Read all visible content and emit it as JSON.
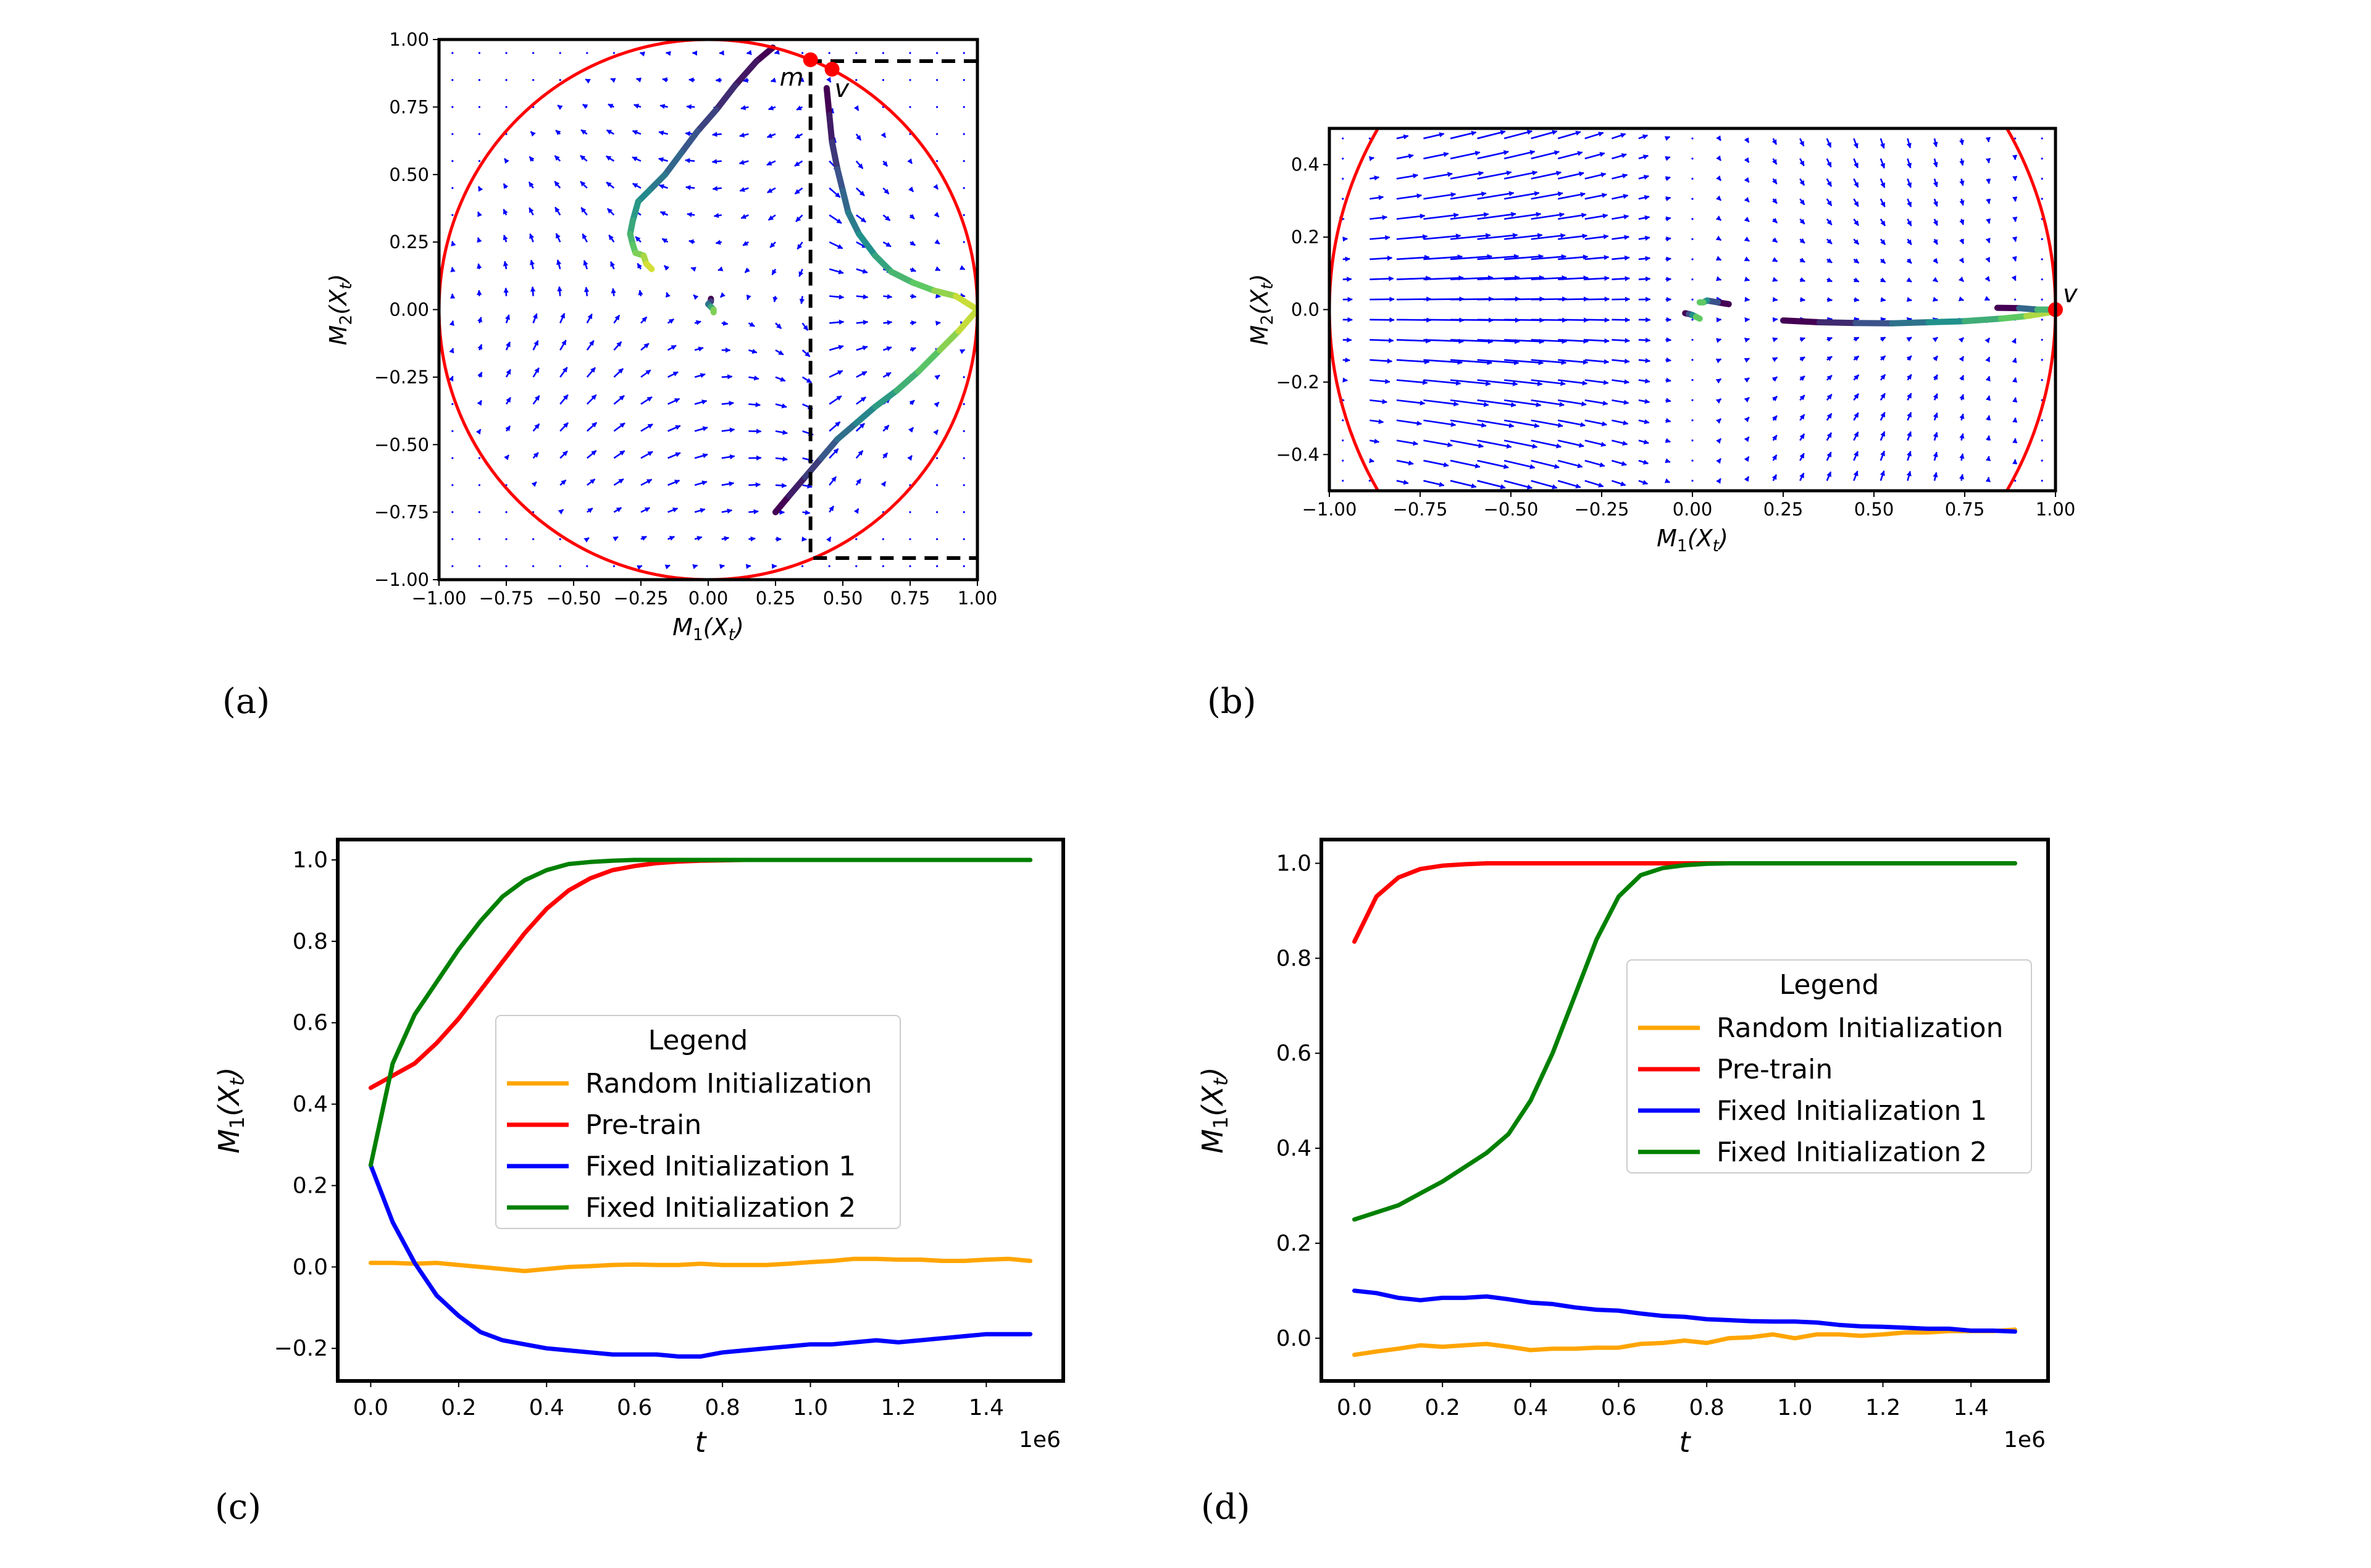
{
  "figure": {
    "panel_labels": [
      "(a)",
      "(b)",
      "(c)",
      "(d)"
    ]
  },
  "chart_data": [
    {
      "id": "a",
      "type": "scatter",
      "subtype": "quiver-phase-portrait",
      "title": "",
      "xlabel": "M_1(X_t)",
      "ylabel": "M_2(X_t)",
      "xlim": [
        -1.0,
        1.0
      ],
      "ylim": [
        -1.0,
        1.0
      ],
      "xticks": [
        -1.0,
        -0.75,
        -0.5,
        -0.25,
        0.0,
        0.25,
        0.5,
        0.75,
        1.0
      ],
      "xtick_labels": [
        "−1.00",
        "−0.75",
        "−0.50",
        "−0.25",
        "0.00",
        "0.25",
        "0.50",
        "0.75",
        "1.00"
      ],
      "yticks": [
        -1.0,
        -0.75,
        -0.5,
        -0.25,
        0.0,
        0.25,
        0.5,
        0.75,
        1.0
      ],
      "ytick_labels": [
        "−1.00",
        "−0.75",
        "−0.50",
        "−0.25",
        "0.00",
        "0.25",
        "0.50",
        "0.75",
        "1.00"
      ],
      "grid": false,
      "colors": {
        "circle": "#ff0000",
        "quiver": "#0000ff",
        "dashed": "#000000",
        "marker": "#ff0000"
      },
      "unit_circle": {
        "center": [
          0,
          0
        ],
        "radius": 1.0
      },
      "dashed_box": {
        "x": 0.38,
        "y_top": 0.92,
        "y_bottom": -0.92,
        "x_right": 1.0
      },
      "markers": [
        {
          "label": "m",
          "x": 0.38,
          "y": 0.925
        },
        {
          "label": "v",
          "x": 0.46,
          "y": 0.89
        }
      ],
      "trajectories": [
        {
          "name": "traj-1",
          "points": [
            [
              0.24,
              0.97
            ],
            [
              0.18,
              0.92
            ],
            [
              0.1,
              0.83
            ],
            [
              0.03,
              0.74
            ],
            [
              -0.04,
              0.66
            ],
            [
              -0.1,
              0.58
            ],
            [
              -0.16,
              0.5
            ],
            [
              -0.22,
              0.44
            ],
            [
              -0.26,
              0.4
            ],
            [
              -0.28,
              0.33
            ],
            [
              -0.29,
              0.28
            ],
            [
              -0.28,
              0.24
            ],
            [
              -0.27,
              0.21
            ],
            [
              -0.24,
              0.2
            ],
            [
              -0.23,
              0.17
            ],
            [
              -0.21,
              0.15
            ]
          ]
        },
        {
          "name": "traj-2",
          "points": [
            [
              0.44,
              0.82
            ],
            [
              0.45,
              0.72
            ],
            [
              0.46,
              0.62
            ],
            [
              0.48,
              0.52
            ],
            [
              0.5,
              0.44
            ],
            [
              0.52,
              0.36
            ],
            [
              0.56,
              0.28
            ],
            [
              0.62,
              0.2
            ],
            [
              0.68,
              0.14
            ],
            [
              0.76,
              0.1
            ],
            [
              0.84,
              0.07
            ],
            [
              0.92,
              0.05
            ],
            [
              1.0,
              0.0
            ]
          ]
        },
        {
          "name": "traj-3",
          "points": [
            [
              0.25,
              -0.75
            ],
            [
              0.3,
              -0.69
            ],
            [
              0.36,
              -0.62
            ],
            [
              0.42,
              -0.55
            ],
            [
              0.48,
              -0.48
            ],
            [
              0.55,
              -0.42
            ],
            [
              0.62,
              -0.36
            ],
            [
              0.7,
              -0.3
            ],
            [
              0.78,
              -0.23
            ],
            [
              0.86,
              -0.15
            ],
            [
              0.93,
              -0.08
            ],
            [
              1.0,
              0.0
            ]
          ]
        },
        {
          "name": "traj-4",
          "points": [
            [
              0.01,
              0.04
            ],
            [
              0.01,
              0.03
            ],
            [
              0.0,
              0.02
            ],
            [
              0.01,
              0.01
            ],
            [
              0.02,
              0.0
            ],
            [
              0.02,
              -0.01
            ]
          ]
        }
      ]
    },
    {
      "id": "b",
      "type": "scatter",
      "subtype": "quiver-phase-portrait",
      "title": "",
      "xlabel": "M_1(X_t)",
      "ylabel": "M_2(X_t)",
      "xlim": [
        -1.0,
        1.0
      ],
      "ylim": [
        -0.5,
        0.5
      ],
      "xticks": [
        -1.0,
        -0.75,
        -0.5,
        -0.25,
        0.0,
        0.25,
        0.5,
        0.75,
        1.0
      ],
      "xtick_labels": [
        "−1.00",
        "−0.75",
        "−0.50",
        "−0.25",
        "0.00",
        "0.25",
        "0.50",
        "0.75",
        "1.00"
      ],
      "yticks": [
        -0.4,
        -0.2,
        0.0,
        0.2,
        0.4
      ],
      "ytick_labels": [
        "−0.4",
        "−0.2",
        "0.0",
        "0.2",
        "0.4"
      ],
      "grid": false,
      "colors": {
        "circle": "#ff0000",
        "quiver": "#0000ff",
        "marker": "#ff0000"
      },
      "unit_circle": {
        "center": [
          0,
          0
        ],
        "radius": 1.0
      },
      "markers": [
        {
          "label": "v",
          "x": 1.0,
          "y": 0.0
        }
      ],
      "trajectories": [
        {
          "name": "traj-1",
          "points": [
            [
              0.25,
              -0.03
            ],
            [
              0.35,
              -0.035
            ],
            [
              0.45,
              -0.037
            ],
            [
              0.55,
              -0.038
            ],
            [
              0.65,
              -0.035
            ],
            [
              0.75,
              -0.032
            ],
            [
              0.85,
              -0.025
            ],
            [
              0.92,
              -0.018
            ],
            [
              1.0,
              -0.005
            ]
          ]
        },
        {
          "name": "traj-2",
          "points": [
            [
              0.84,
              0.005
            ],
            [
              0.9,
              0.004
            ],
            [
              0.95,
              0.0
            ],
            [
              1.0,
              0.0
            ]
          ]
        },
        {
          "name": "traj-3",
          "points": [
            [
              0.1,
              0.015
            ],
            [
              0.07,
              0.02
            ],
            [
              0.04,
              0.025
            ],
            [
              0.03,
              0.02
            ],
            [
              0.02,
              0.02
            ]
          ]
        },
        {
          "name": "traj-4",
          "points": [
            [
              -0.02,
              -0.01
            ],
            [
              -0.01,
              -0.012
            ],
            [
              0.0,
              -0.015
            ],
            [
              0.01,
              -0.02
            ],
            [
              0.02,
              -0.025
            ]
          ]
        }
      ]
    },
    {
      "id": "c",
      "type": "line",
      "title": "",
      "xlabel": "t",
      "ylabel": "M_1(X_t)",
      "x_offset_label": "1e6",
      "xlim": [
        -0.075,
        1.575
      ],
      "ylim": [
        -0.28,
        1.05
      ],
      "xticks": [
        0.0,
        0.2,
        0.4,
        0.6,
        0.8,
        1.0,
        1.2,
        1.4
      ],
      "xtick_labels": [
        "0.0",
        "0.2",
        "0.4",
        "0.6",
        "0.8",
        "1.0",
        "1.2",
        "1.4"
      ],
      "yticks": [
        -0.2,
        0.0,
        0.2,
        0.4,
        0.6,
        0.8,
        1.0
      ],
      "ytick_labels": [
        "−0.2",
        "0.0",
        "0.2",
        "0.4",
        "0.6",
        "0.8",
        "1.0"
      ],
      "grid": false,
      "legend": {
        "title": "Legend",
        "placement": "center-right"
      },
      "x": [
        0.0,
        0.05,
        0.1,
        0.15,
        0.2,
        0.25,
        0.3,
        0.35,
        0.4,
        0.45,
        0.5,
        0.55,
        0.6,
        0.65,
        0.7,
        0.75,
        0.8,
        0.85,
        0.9,
        0.95,
        1.0,
        1.05,
        1.1,
        1.15,
        1.2,
        1.25,
        1.3,
        1.35,
        1.4,
        1.45,
        1.5
      ],
      "series": [
        {
          "name": "Random Initialization",
          "color": "#ffa500",
          "values": [
            0.01,
            0.01,
            0.008,
            0.01,
            0.005,
            0.0,
            -0.005,
            -0.01,
            -0.005,
            0.0,
            0.002,
            0.005,
            0.006,
            0.005,
            0.005,
            0.008,
            0.005,
            0.005,
            0.005,
            0.008,
            0.012,
            0.015,
            0.02,
            0.02,
            0.018,
            0.018,
            0.015,
            0.015,
            0.018,
            0.02,
            0.015
          ]
        },
        {
          "name": "Pre-train",
          "color": "#ff0000",
          "values": [
            0.44,
            0.47,
            0.5,
            0.55,
            0.61,
            0.68,
            0.75,
            0.82,
            0.88,
            0.925,
            0.955,
            0.975,
            0.985,
            0.992,
            0.996,
            0.998,
            0.999,
            1.0,
            1.0,
            1.0,
            1.0,
            1.0,
            1.0,
            1.0,
            1.0,
            1.0,
            1.0,
            1.0,
            1.0,
            1.0,
            1.0
          ]
        },
        {
          "name": "Fixed Initialization 1",
          "color": "#0000ff",
          "values": [
            0.25,
            0.11,
            0.01,
            -0.07,
            -0.12,
            -0.16,
            -0.18,
            -0.19,
            -0.2,
            -0.205,
            -0.21,
            -0.215,
            -0.215,
            -0.215,
            -0.22,
            -0.22,
            -0.21,
            -0.205,
            -0.2,
            -0.195,
            -0.19,
            -0.19,
            -0.185,
            -0.18,
            -0.185,
            -0.18,
            -0.175,
            -0.17,
            -0.165,
            -0.165,
            -0.165
          ]
        },
        {
          "name": "Fixed Initialization 2",
          "color": "#008000",
          "values": [
            0.25,
            0.5,
            0.62,
            0.7,
            0.78,
            0.85,
            0.91,
            0.95,
            0.975,
            0.99,
            0.995,
            0.998,
            1.0,
            1.0,
            1.0,
            1.0,
            1.0,
            1.0,
            1.0,
            1.0,
            1.0,
            1.0,
            1.0,
            1.0,
            1.0,
            1.0,
            1.0,
            1.0,
            1.0,
            1.0,
            1.0
          ]
        }
      ]
    },
    {
      "id": "d",
      "type": "line",
      "title": "",
      "xlabel": "t",
      "ylabel": "M_1(X_t)",
      "x_offset_label": "1e6",
      "xlim": [
        -0.075,
        1.575
      ],
      "ylim": [
        -0.09,
        1.05
      ],
      "xticks": [
        0.0,
        0.2,
        0.4,
        0.6,
        0.8,
        1.0,
        1.2,
        1.4
      ],
      "xtick_labels": [
        "0.0",
        "0.2",
        "0.4",
        "0.6",
        "0.8",
        "1.0",
        "1.2",
        "1.4"
      ],
      "yticks": [
        0.0,
        0.2,
        0.4,
        0.6,
        0.8,
        1.0
      ],
      "ytick_labels": [
        "0.0",
        "0.2",
        "0.4",
        "0.6",
        "0.8",
        "1.0"
      ],
      "grid": false,
      "legend": {
        "title": "Legend",
        "placement": "center-right"
      },
      "x": [
        0.0,
        0.05,
        0.1,
        0.15,
        0.2,
        0.25,
        0.3,
        0.35,
        0.4,
        0.45,
        0.5,
        0.55,
        0.6,
        0.65,
        0.7,
        0.75,
        0.8,
        0.85,
        0.9,
        0.95,
        1.0,
        1.05,
        1.1,
        1.15,
        1.2,
        1.25,
        1.3,
        1.35,
        1.4,
        1.45,
        1.5
      ],
      "series": [
        {
          "name": "Random Initialization",
          "color": "#ffa500",
          "values": [
            -0.035,
            -0.028,
            -0.022,
            -0.015,
            -0.018,
            -0.015,
            -0.012,
            -0.018,
            -0.025,
            -0.022,
            -0.022,
            -0.02,
            -0.02,
            -0.012,
            -0.01,
            -0.005,
            -0.01,
            0.0,
            0.002,
            0.008,
            0.0,
            0.008,
            0.008,
            0.005,
            0.008,
            0.012,
            0.012,
            0.015,
            0.015,
            0.015,
            0.018
          ]
        },
        {
          "name": "Pre-train",
          "color": "#ff0000",
          "values": [
            0.835,
            0.93,
            0.97,
            0.988,
            0.995,
            0.998,
            1.0,
            1.0,
            1.0,
            1.0,
            1.0,
            1.0,
            1.0,
            1.0,
            1.0,
            1.0,
            1.0,
            1.0,
            1.0,
            1.0,
            1.0,
            1.0,
            1.0,
            1.0,
            1.0,
            1.0,
            1.0,
            1.0,
            1.0,
            1.0,
            1.0
          ]
        },
        {
          "name": "Fixed Initialization 1",
          "color": "#0000ff",
          "values": [
            0.1,
            0.095,
            0.085,
            0.08,
            0.085,
            0.085,
            0.088,
            0.082,
            0.075,
            0.072,
            0.065,
            0.06,
            0.058,
            0.052,
            0.047,
            0.045,
            0.04,
            0.038,
            0.036,
            0.035,
            0.035,
            0.033,
            0.028,
            0.025,
            0.024,
            0.022,
            0.02,
            0.02,
            0.016,
            0.016,
            0.014
          ]
        },
        {
          "name": "Fixed Initialization 2",
          "color": "#008000",
          "values": [
            0.25,
            0.265,
            0.28,
            0.305,
            0.33,
            0.36,
            0.39,
            0.43,
            0.5,
            0.6,
            0.72,
            0.84,
            0.93,
            0.975,
            0.99,
            0.996,
            0.999,
            1.0,
            1.0,
            1.0,
            1.0,
            1.0,
            1.0,
            1.0,
            1.0,
            1.0,
            1.0,
            1.0,
            1.0,
            1.0,
            1.0
          ]
        }
      ]
    }
  ]
}
